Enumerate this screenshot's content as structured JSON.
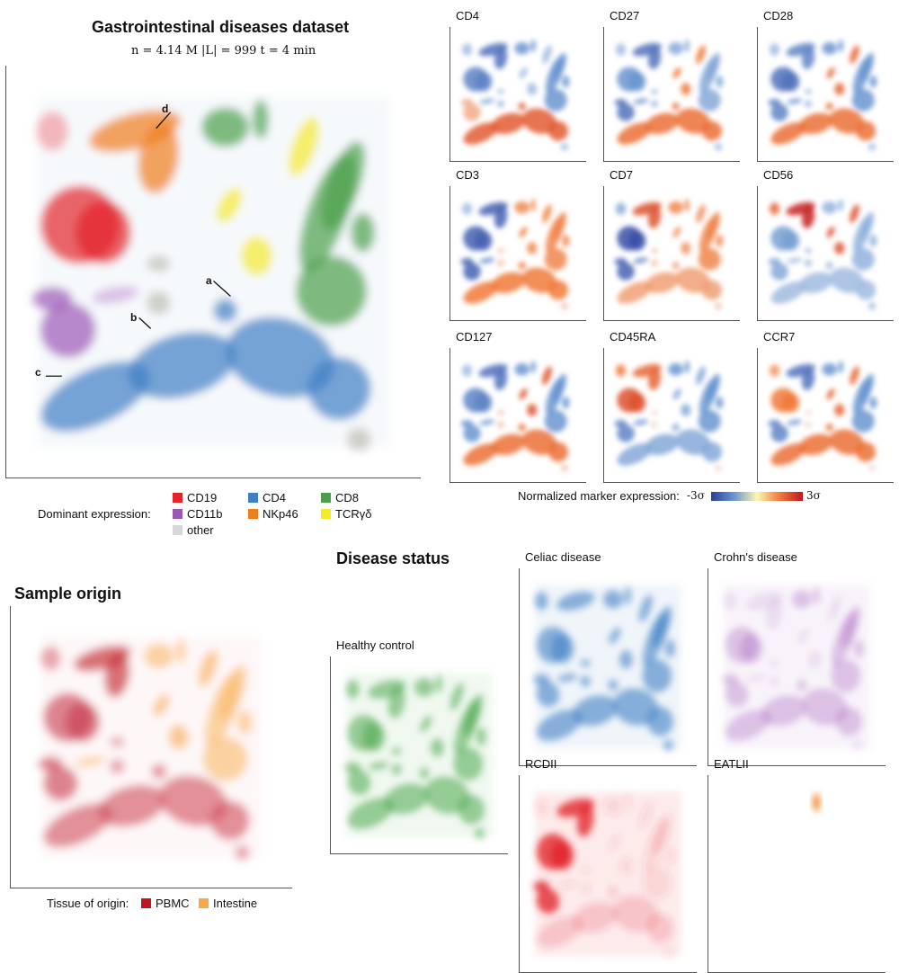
{
  "main": {
    "title": "Gastrointestinal diseases dataset",
    "subtitle": "n = 4.14 M   |L| = 999   t = 4 min",
    "annotations": [
      "a",
      "b",
      "c",
      "d"
    ],
    "legend": {
      "label": "Dominant expression:",
      "items": [
        {
          "name": "CD19",
          "color": "#e3242b"
        },
        {
          "name": "CD4",
          "color": "#3f7fc4"
        },
        {
          "name": "CD8",
          "color": "#4aa04a"
        },
        {
          "name": "CD11b",
          "color": "#9b59b6"
        },
        {
          "name": "NKp46",
          "color": "#f07d1c"
        },
        {
          "name": "TCRγδ",
          "color": "#f3ea2a"
        },
        {
          "name": "other",
          "color": "#d8d8d8"
        }
      ]
    }
  },
  "markers": {
    "panels": [
      "CD4",
      "CD27",
      "CD28",
      "CD3",
      "CD7",
      "CD56",
      "CD127",
      "CD45RA",
      "CCR7"
    ],
    "colorbar": {
      "label": "Normalized marker expression:",
      "min": "-3σ",
      "max": "3σ",
      "colors": [
        "#2c3e9e",
        "#6a95d0",
        "#fbf7b0",
        "#f07a3a",
        "#c0161f"
      ]
    }
  },
  "origin": {
    "title": "Sample origin",
    "legend": {
      "label": "Tissue of origin:",
      "items": [
        {
          "name": "PBMC",
          "color": "#c0161f"
        },
        {
          "name": "Intestine",
          "color": "#f9a849"
        }
      ]
    }
  },
  "disease": {
    "title": "Disease status",
    "panels": [
      {
        "name": "Healthy control",
        "color": "#4aa84a"
      },
      {
        "name": "Celiac disease",
        "color": "#3f7fc4"
      },
      {
        "name": "Crohn's disease",
        "color": "#a865c0"
      },
      {
        "name": "RCDII",
        "color": "#e3242b"
      },
      {
        "name": "EATLII",
        "color": "#f07d1c"
      }
    ]
  },
  "chart_data": [
    {
      "type": "scatter",
      "title": "Gastrointestinal diseases dataset",
      "subtitle": "n = 4.14 M |L| = 999 t = 4 min",
      "xlabel": "",
      "ylabel": "",
      "legend": "bottom",
      "categories": [
        "CD19",
        "CD4",
        "CD8",
        "CD11b",
        "NKp46",
        "TCRγδ",
        "other"
      ]
    },
    {
      "type": "heatmap",
      "panels": [
        "CD4",
        "CD27",
        "CD28",
        "CD3",
        "CD7",
        "CD56",
        "CD127",
        "CD45RA",
        "CCR7"
      ],
      "colorbar_range": [
        "-3σ",
        "3σ"
      ]
    },
    {
      "type": "scatter",
      "title": "Sample origin",
      "categories": [
        "PBMC",
        "Intestine"
      ]
    },
    {
      "type": "scatter",
      "title": "Disease status",
      "panels": [
        "Healthy control",
        "Celiac disease",
        "Crohn's disease",
        "RCDII",
        "EATLII"
      ]
    }
  ]
}
